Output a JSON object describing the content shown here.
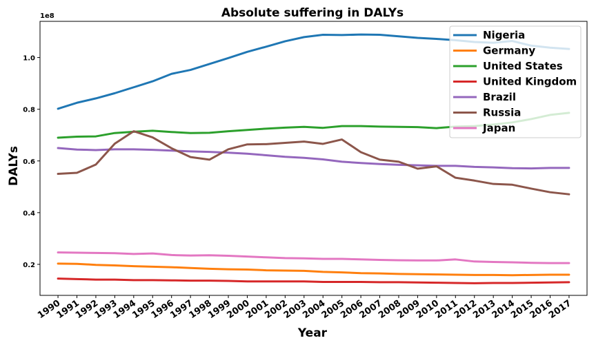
{
  "chart_data": {
    "type": "line",
    "title": "Absolute suffering in DALYs",
    "xlabel": "Year",
    "ylabel": "DALYs",
    "y_offset_label": "1e8",
    "ylim": [
      0.08,
      1.14
    ],
    "y_ticks": [
      0.2,
      0.4,
      0.6,
      0.8,
      1.0
    ],
    "y_tick_labels": [
      "0.2",
      "0.4",
      "0.6",
      "0.8",
      "1.0"
    ],
    "x": [
      1990,
      1991,
      1992,
      1993,
      1994,
      1995,
      1996,
      1997,
      1998,
      1999,
      2000,
      2001,
      2002,
      2003,
      2004,
      2005,
      2006,
      2007,
      2008,
      2009,
      2010,
      2011,
      2012,
      2013,
      2014,
      2015,
      2016,
      2017
    ],
    "x_tick_labels": [
      "1990",
      "1991",
      "1992",
      "1993",
      "1994",
      "1995",
      "1996",
      "1997",
      "1998",
      "1999",
      "2000",
      "2001",
      "2002",
      "2003",
      "2004",
      "2005",
      "2006",
      "2007",
      "2008",
      "2009",
      "2010",
      "2011",
      "2012",
      "2013",
      "2014",
      "2015",
      "2016",
      "2017"
    ],
    "legend_position": "top-right",
    "grid": false,
    "series": [
      {
        "name": "Nigeria",
        "color": "#1f77b4",
        "values": [
          0.802,
          0.825,
          0.842,
          0.862,
          0.885,
          0.908,
          0.937,
          0.952,
          0.975,
          0.998,
          1.022,
          1.042,
          1.063,
          1.079,
          1.088,
          1.087,
          1.089,
          1.088,
          1.082,
          1.076,
          1.072,
          1.067,
          1.06,
          1.057,
          1.064,
          1.046,
          1.038,
          1.033
        ]
      },
      {
        "name": "Germany",
        "color": "#ff7f0e",
        "values": [
          0.203,
          0.202,
          0.198,
          0.196,
          0.193,
          0.191,
          0.189,
          0.186,
          0.183,
          0.181,
          0.18,
          0.177,
          0.176,
          0.175,
          0.171,
          0.169,
          0.166,
          0.165,
          0.163,
          0.162,
          0.161,
          0.16,
          0.159,
          0.159,
          0.158,
          0.159,
          0.16,
          0.16
        ]
      },
      {
        "name": "United States",
        "color": "#2ca02c",
        "values": [
          0.69,
          0.694,
          0.695,
          0.708,
          0.713,
          0.717,
          0.712,
          0.708,
          0.709,
          0.715,
          0.72,
          0.725,
          0.729,
          0.732,
          0.728,
          0.735,
          0.735,
          0.733,
          0.732,
          0.731,
          0.727,
          0.733,
          0.735,
          0.741,
          0.749,
          0.762,
          0.778,
          0.786
        ]
      },
      {
        "name": "United Kingdom",
        "color": "#d62728",
        "values": [
          0.145,
          0.143,
          0.141,
          0.141,
          0.139,
          0.139,
          0.138,
          0.137,
          0.137,
          0.136,
          0.134,
          0.134,
          0.134,
          0.134,
          0.132,
          0.132,
          0.132,
          0.131,
          0.131,
          0.13,
          0.129,
          0.128,
          0.127,
          0.128,
          0.128,
          0.129,
          0.13,
          0.131
        ]
      },
      {
        "name": "Brazil",
        "color": "#9467bd",
        "values": [
          0.65,
          0.644,
          0.642,
          0.645,
          0.645,
          0.643,
          0.64,
          0.637,
          0.635,
          0.632,
          0.628,
          0.622,
          0.616,
          0.612,
          0.606,
          0.597,
          0.592,
          0.588,
          0.585,
          0.583,
          0.581,
          0.581,
          0.577,
          0.575,
          0.572,
          0.571,
          0.573,
          0.573
        ]
      },
      {
        "name": "Russia",
        "color": "#8c564b",
        "values": [
          0.55,
          0.554,
          0.586,
          0.667,
          0.715,
          0.691,
          0.649,
          0.615,
          0.605,
          0.645,
          0.664,
          0.665,
          0.67,
          0.675,
          0.666,
          0.683,
          0.634,
          0.605,
          0.597,
          0.57,
          0.579,
          0.535,
          0.524,
          0.511,
          0.508,
          0.493,
          0.479,
          0.471
        ]
      },
      {
        "name": "Japan",
        "color": "#e377c2",
        "values": [
          0.246,
          0.245,
          0.244,
          0.243,
          0.24,
          0.242,
          0.236,
          0.234,
          0.235,
          0.233,
          0.23,
          0.227,
          0.224,
          0.223,
          0.221,
          0.221,
          0.219,
          0.217,
          0.216,
          0.215,
          0.215,
          0.219,
          0.211,
          0.209,
          0.208,
          0.206,
          0.205,
          0.205
        ]
      }
    ]
  }
}
